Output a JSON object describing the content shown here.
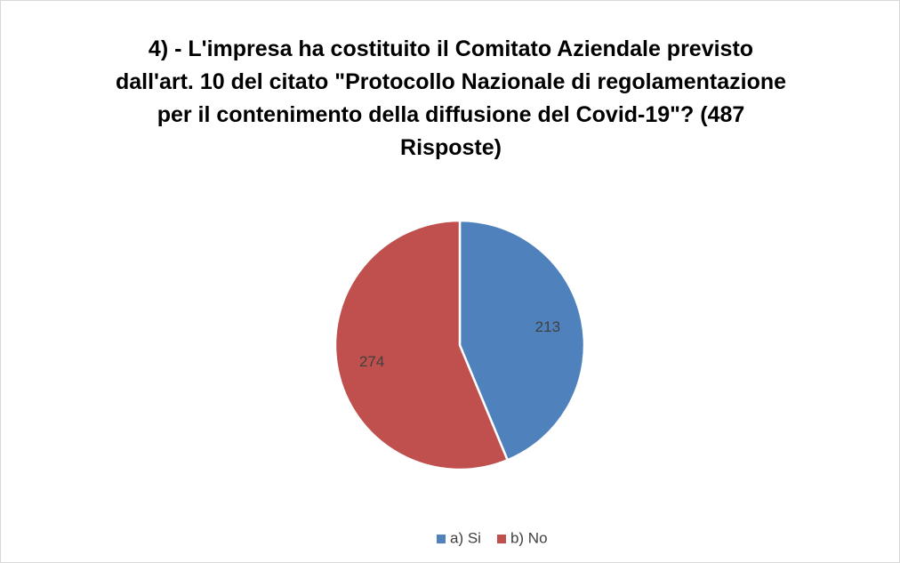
{
  "chart_data": {
    "type": "pie",
    "title": "4) - L'impresa ha costituito il Comitato Aziendale previsto dall'art. 10 del citato \"Protocollo Nazionale di regolamentazione per il contenimento della diffusione del Covid-19\"? (487 Risposte)",
    "categories": [
      "a) Si",
      "b) No"
    ],
    "values": [
      213,
      274
    ],
    "colors": [
      "#4f81bd",
      "#c0504d"
    ],
    "legend": "bottom"
  }
}
